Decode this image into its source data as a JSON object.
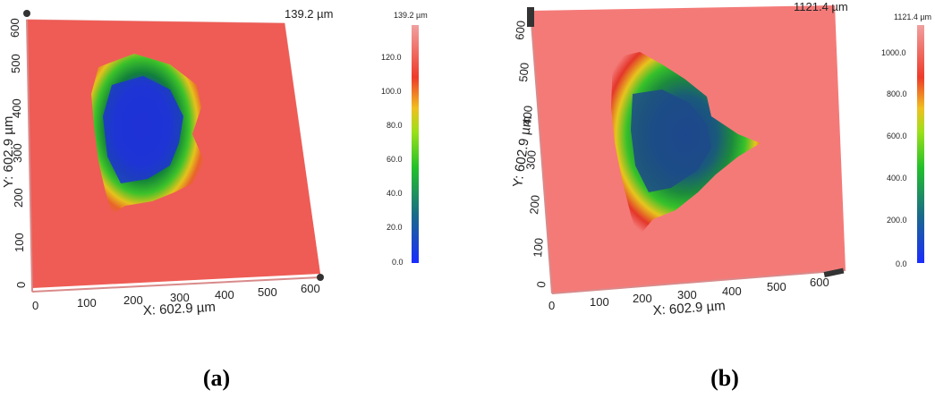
{
  "panels": [
    {
      "id": "a",
      "caption": "(a)",
      "max_label": "139.2 µm",
      "x_axis_label": "X: 602.9 µm",
      "y_axis_label": "Y: 602.9 µm",
      "x_ticks": [
        "0",
        "100",
        "200",
        "300",
        "400",
        "500",
        "600"
      ],
      "y_ticks": [
        "0",
        "100",
        "200",
        "300",
        "400",
        "500",
        "600"
      ],
      "colorbar_title": "139.2 µm",
      "colorbar_ticks": [
        "120.0",
        "100.0",
        "80.0",
        "60.0",
        "40.0",
        "20.0",
        "0.0"
      ]
    },
    {
      "id": "b",
      "caption": "(b)",
      "max_label": "1121.4 µm",
      "x_axis_label": "X: 602.9 µm",
      "y_axis_label": "Y: 602.9 µm",
      "x_ticks": [
        "0",
        "100",
        "200",
        "300",
        "400",
        "500",
        "600"
      ],
      "y_ticks": [
        "0",
        "100",
        "200",
        "300",
        "400",
        "500",
        "600"
      ],
      "colorbar_title": "1121.4 µm",
      "colorbar_ticks": [
        "1000.0",
        "800.0",
        "600.0",
        "400.0",
        "200.0",
        "0.0"
      ]
    }
  ],
  "colors": {
    "surface_a": "#ee5c55",
    "surface_b": "#f47a78",
    "grid": "#e8a0a0"
  }
}
